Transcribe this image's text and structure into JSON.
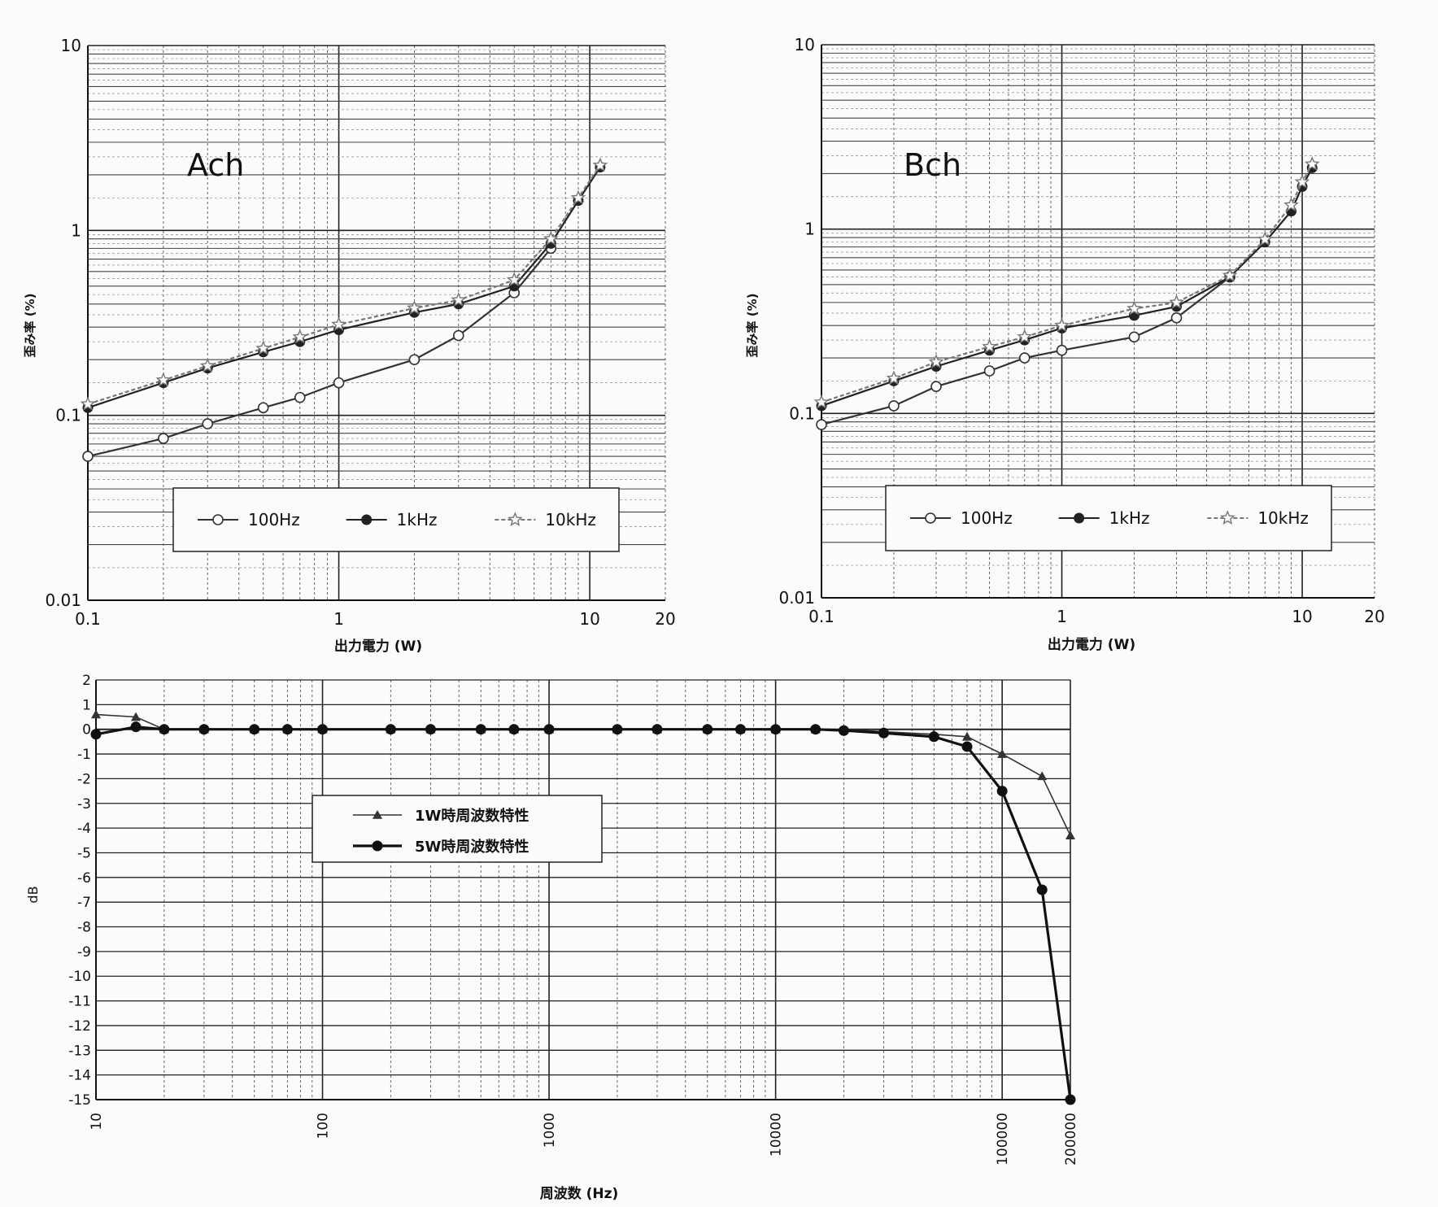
{
  "chart_data": [
    {
      "type": "line",
      "panel_label": "Ach",
      "xlabel": "出力電力 (W)",
      "ylabel": "歪み率 (%)",
      "xscale": "log",
      "yscale": "log",
      "xlim": [
        0.1,
        20
      ],
      "ylim": [
        0.01,
        10
      ],
      "xticks": [
        0.1,
        1,
        10,
        20
      ],
      "xtick_labels": [
        "0.1",
        "1",
        "10",
        "20"
      ],
      "yticks": [
        0.01,
        0.1,
        1,
        10
      ],
      "ytick_labels": [
        "0.01",
        "0.1",
        "1",
        "10"
      ],
      "grid": true,
      "legend_position": "bottom-center",
      "series": [
        {
          "name": "100Hz",
          "marker": "open-circle",
          "color": "#333333",
          "dash": "",
          "x": [
            0.1,
            0.2,
            0.3,
            0.5,
            0.7,
            1,
            2,
            3,
            5,
            7
          ],
          "y": [
            0.06,
            0.075,
            0.09,
            0.11,
            0.125,
            0.15,
            0.2,
            0.27,
            0.46,
            0.8
          ]
        },
        {
          "name": "1kHz",
          "marker": "filled-circle",
          "color": "#222222",
          "dash": "",
          "x": [
            0.1,
            0.2,
            0.3,
            0.5,
            0.7,
            1,
            2,
            3,
            5,
            7,
            9,
            11
          ],
          "y": [
            0.11,
            0.15,
            0.18,
            0.22,
            0.25,
            0.29,
            0.36,
            0.4,
            0.5,
            0.85,
            1.45,
            2.2
          ]
        },
        {
          "name": "10kHz",
          "marker": "star",
          "color": "#777777",
          "dash": "5,3",
          "x": [
            0.1,
            0.2,
            0.3,
            0.5,
            0.7,
            1,
            2,
            3,
            5,
            7,
            9,
            11
          ],
          "y": [
            0.115,
            0.155,
            0.185,
            0.23,
            0.265,
            0.31,
            0.38,
            0.42,
            0.54,
            0.9,
            1.5,
            2.25
          ]
        }
      ]
    },
    {
      "type": "line",
      "panel_label": "Bch",
      "xlabel": "出力電力 (W)",
      "ylabel": "歪み率 (%)",
      "xscale": "log",
      "yscale": "log",
      "xlim": [
        0.1,
        20
      ],
      "ylim": [
        0.01,
        10
      ],
      "xticks": [
        0.1,
        1,
        10,
        20
      ],
      "xtick_labels": [
        "0.1",
        "1",
        "10",
        "20"
      ],
      "yticks": [
        0.01,
        0.1,
        1,
        10
      ],
      "ytick_labels": [
        "0.01",
        "0.1",
        "1",
        "10"
      ],
      "grid": true,
      "legend_position": "bottom-center",
      "series": [
        {
          "name": "100Hz",
          "marker": "open-circle",
          "color": "#333333",
          "dash": "",
          "x": [
            0.1,
            0.2,
            0.3,
            0.5,
            0.7,
            1,
            2,
            3,
            5
          ],
          "y": [
            0.087,
            0.11,
            0.14,
            0.17,
            0.2,
            0.22,
            0.26,
            0.33,
            0.55
          ]
        },
        {
          "name": "1kHz",
          "marker": "filled-circle",
          "color": "#222222",
          "dash": "",
          "x": [
            0.1,
            0.2,
            0.3,
            0.5,
            0.7,
            1,
            2,
            3,
            5,
            7,
            9,
            10,
            11
          ],
          "y": [
            0.11,
            0.15,
            0.18,
            0.22,
            0.25,
            0.29,
            0.34,
            0.38,
            0.55,
            0.85,
            1.25,
            1.7,
            2.15
          ]
        },
        {
          "name": "10kHz",
          "marker": "star",
          "color": "#777777",
          "dash": "5,3",
          "x": [
            0.1,
            0.2,
            0.3,
            0.5,
            0.7,
            1,
            2,
            3,
            5,
            7,
            9,
            10,
            11
          ],
          "y": [
            0.115,
            0.155,
            0.19,
            0.23,
            0.26,
            0.3,
            0.37,
            0.4,
            0.56,
            0.88,
            1.35,
            1.8,
            2.25
          ]
        }
      ]
    },
    {
      "type": "line",
      "xlabel": "周波数 (Hz)",
      "ylabel": "dB",
      "xscale": "log",
      "xlim": [
        10,
        200000
      ],
      "ylim": [
        -15,
        2
      ],
      "xticks": [
        10,
        100,
        1000,
        10000,
        100000,
        200000
      ],
      "xtick_labels": [
        "10",
        "100",
        "1000",
        "10000",
        "100000",
        "200000"
      ],
      "yticks": [
        2,
        1,
        0,
        -1,
        -2,
        -3,
        -4,
        -5,
        -6,
        -7,
        -8,
        -9,
        -10,
        -11,
        -12,
        -13,
        -14,
        -15
      ],
      "ytick_labels": [
        "2",
        "1",
        "0",
        "-1",
        "-2",
        "-3",
        "-4",
        "-5",
        "-6",
        "-7",
        "-8",
        "-9",
        "-10",
        "-11",
        "-12",
        "-13",
        "-14",
        "-15"
      ],
      "grid": true,
      "legend_position": "upper-left",
      "series": [
        {
          "name": "1W時周波数特性",
          "marker": "triangle",
          "color": "#333333",
          "dash": "",
          "x": [
            10,
            15,
            20,
            30,
            50,
            70,
            100,
            200,
            300,
            500,
            700,
            1000,
            2000,
            3000,
            5000,
            7000,
            10000,
            15000,
            20000,
            30000,
            50000,
            70000,
            100000,
            150000,
            200000
          ],
          "y": [
            0.6,
            0.5,
            0,
            0,
            0,
            0,
            0,
            0,
            0,
            0,
            0,
            0,
            0,
            0,
            0,
            0,
            0,
            0,
            0,
            -0.1,
            -0.2,
            -0.3,
            -1.0,
            -1.9,
            -4.3
          ]
        },
        {
          "name": "5W時周波数特性",
          "marker": "filled-circle",
          "color": "#111111",
          "dash": "",
          "x": [
            10,
            15,
            20,
            30,
            50,
            70,
            100,
            200,
            300,
            500,
            700,
            1000,
            2000,
            3000,
            5000,
            7000,
            10000,
            15000,
            20000,
            30000,
            50000,
            70000,
            100000,
            150000,
            200000
          ],
          "y": [
            -0.2,
            0.1,
            0,
            0,
            0,
            0,
            0,
            0,
            0,
            0,
            0,
            0,
            0,
            0,
            0,
            0,
            0,
            0,
            -0.05,
            -0.15,
            -0.3,
            -0.7,
            -2.5,
            -6.5,
            -15
          ]
        }
      ]
    }
  ]
}
